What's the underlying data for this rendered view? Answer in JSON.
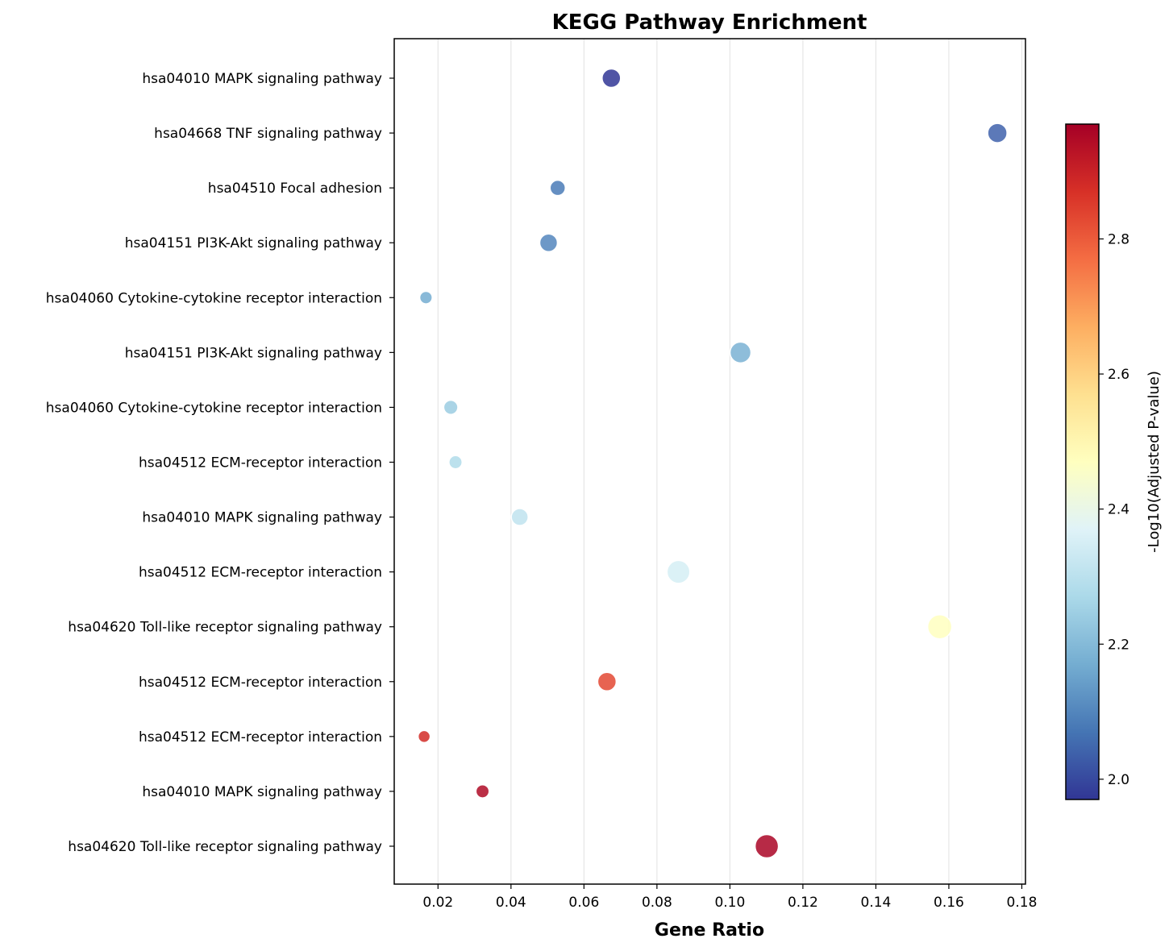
{
  "chart_data": {
    "type": "scatter",
    "title": "KEGG Pathway Enrichment",
    "xlabel": "Gene Ratio",
    "ylabel": "",
    "xlim": [
      0.008,
      0.181
    ],
    "xticks": [
      "0.02",
      "0.04",
      "0.06",
      "0.08",
      "0.10",
      "0.12",
      "0.14",
      "0.16",
      "0.18"
    ],
    "xtick_values": [
      0.02,
      0.04,
      0.06,
      0.08,
      0.1,
      0.12,
      0.14,
      0.16,
      0.18
    ],
    "grid": "vertical",
    "colorbar": {
      "label": "-Log10(Adjusted P-value)",
      "range": [
        1.97,
        2.97
      ],
      "ticks": [
        "2.0",
        "2.2",
        "2.4",
        "2.6",
        "2.8"
      ],
      "tick_values": [
        2.0,
        2.2,
        2.4,
        2.6,
        2.8
      ],
      "colormap": "RdYlBu_r"
    },
    "points": [
      {
        "label": "hsa04010 MAPK signaling pathway",
        "x": 0.0675,
        "color_value": 1.97,
        "size": 0.55
      },
      {
        "label": "hsa04668 TNF signaling pathway",
        "x": 0.1733,
        "color_value": 2.04,
        "size": 0.6
      },
      {
        "label": "hsa04510 Focal adhesion",
        "x": 0.0528,
        "color_value": 2.08,
        "size": 0.35
      },
      {
        "label": "hsa04151 PI3K-Akt signaling pathway",
        "x": 0.0503,
        "color_value": 2.1,
        "size": 0.5
      },
      {
        "label": "hsa04060 Cytokine-cytokine receptor interaction",
        "x": 0.0167,
        "color_value": 2.17,
        "size": 0.18
      },
      {
        "label": "hsa04151 PI3K-Akt signaling pathway",
        "x": 0.1029,
        "color_value": 2.18,
        "size": 0.7
      },
      {
        "label": "hsa04060 Cytokine-cytokine receptor interaction",
        "x": 0.0235,
        "color_value": 2.24,
        "size": 0.28
      },
      {
        "label": "hsa04512 ECM-receptor interaction",
        "x": 0.0248,
        "color_value": 2.28,
        "size": 0.22
      },
      {
        "label": "hsa04010 MAPK signaling pathway",
        "x": 0.0424,
        "color_value": 2.31,
        "size": 0.45
      },
      {
        "label": "hsa04512 ECM-receptor interaction",
        "x": 0.0859,
        "color_value": 2.35,
        "size": 0.82
      },
      {
        "label": "hsa04620 Toll-like receptor signaling pathway",
        "x": 0.1575,
        "color_value": 2.47,
        "size": 0.9
      },
      {
        "label": "hsa04512 ECM-receptor interaction",
        "x": 0.0663,
        "color_value": 2.83,
        "size": 0.55
      },
      {
        "label": "hsa04512 ECM-receptor interaction",
        "x": 0.0162,
        "color_value": 2.88,
        "size": 0.15
      },
      {
        "label": "hsa04010 MAPK signaling pathway",
        "x": 0.0322,
        "color_value": 2.95,
        "size": 0.22
      },
      {
        "label": "hsa04620 Toll-like receptor signaling pathway",
        "x": 0.1101,
        "color_value": 2.96,
        "size": 0.85
      }
    ]
  }
}
